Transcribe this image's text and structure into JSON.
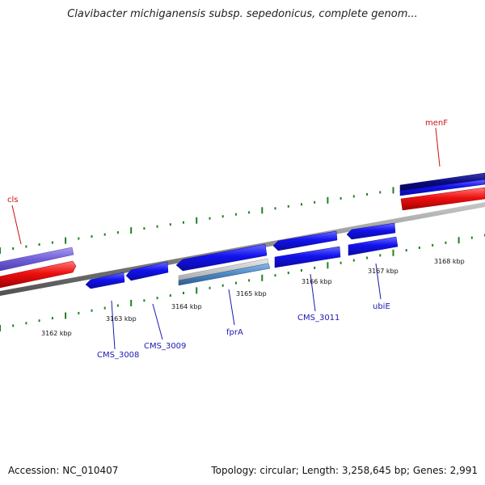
{
  "title": "Clavibacter michiganensis subsp. sepedonicus, complete genom...",
  "footer": {
    "accession": "Accession: NC_010407",
    "summary": "Topology: circular; Length: 3,258,645 bp; Genes: 2,991"
  },
  "ruler": {
    "labels": [
      "3162 kbp",
      "3163 kbp",
      "3164 kbp",
      "3165 kbp",
      "3166 kbp",
      "3167 kbp",
      "3168 kbp"
    ]
  },
  "genes": {
    "cls": "cls",
    "menF": "menF",
    "CMS_3008": "CMS_3008",
    "CMS_3009": "CMS_3009",
    "fprA": "fprA",
    "CMS_3011": "CMS_3011",
    "ubiE": "ubiE"
  },
  "colors": {
    "forward_gene": "#1010e8",
    "red_track": "#ee1010",
    "purple_gene": "#7060d8",
    "navy_gene": "#0a0a80",
    "steel_gene": "#4a86c0",
    "label_blue": "#1a1ab0",
    "label_red": "#cc1010",
    "ruler_green": "#208020",
    "backbone": "#8a8a8a"
  }
}
